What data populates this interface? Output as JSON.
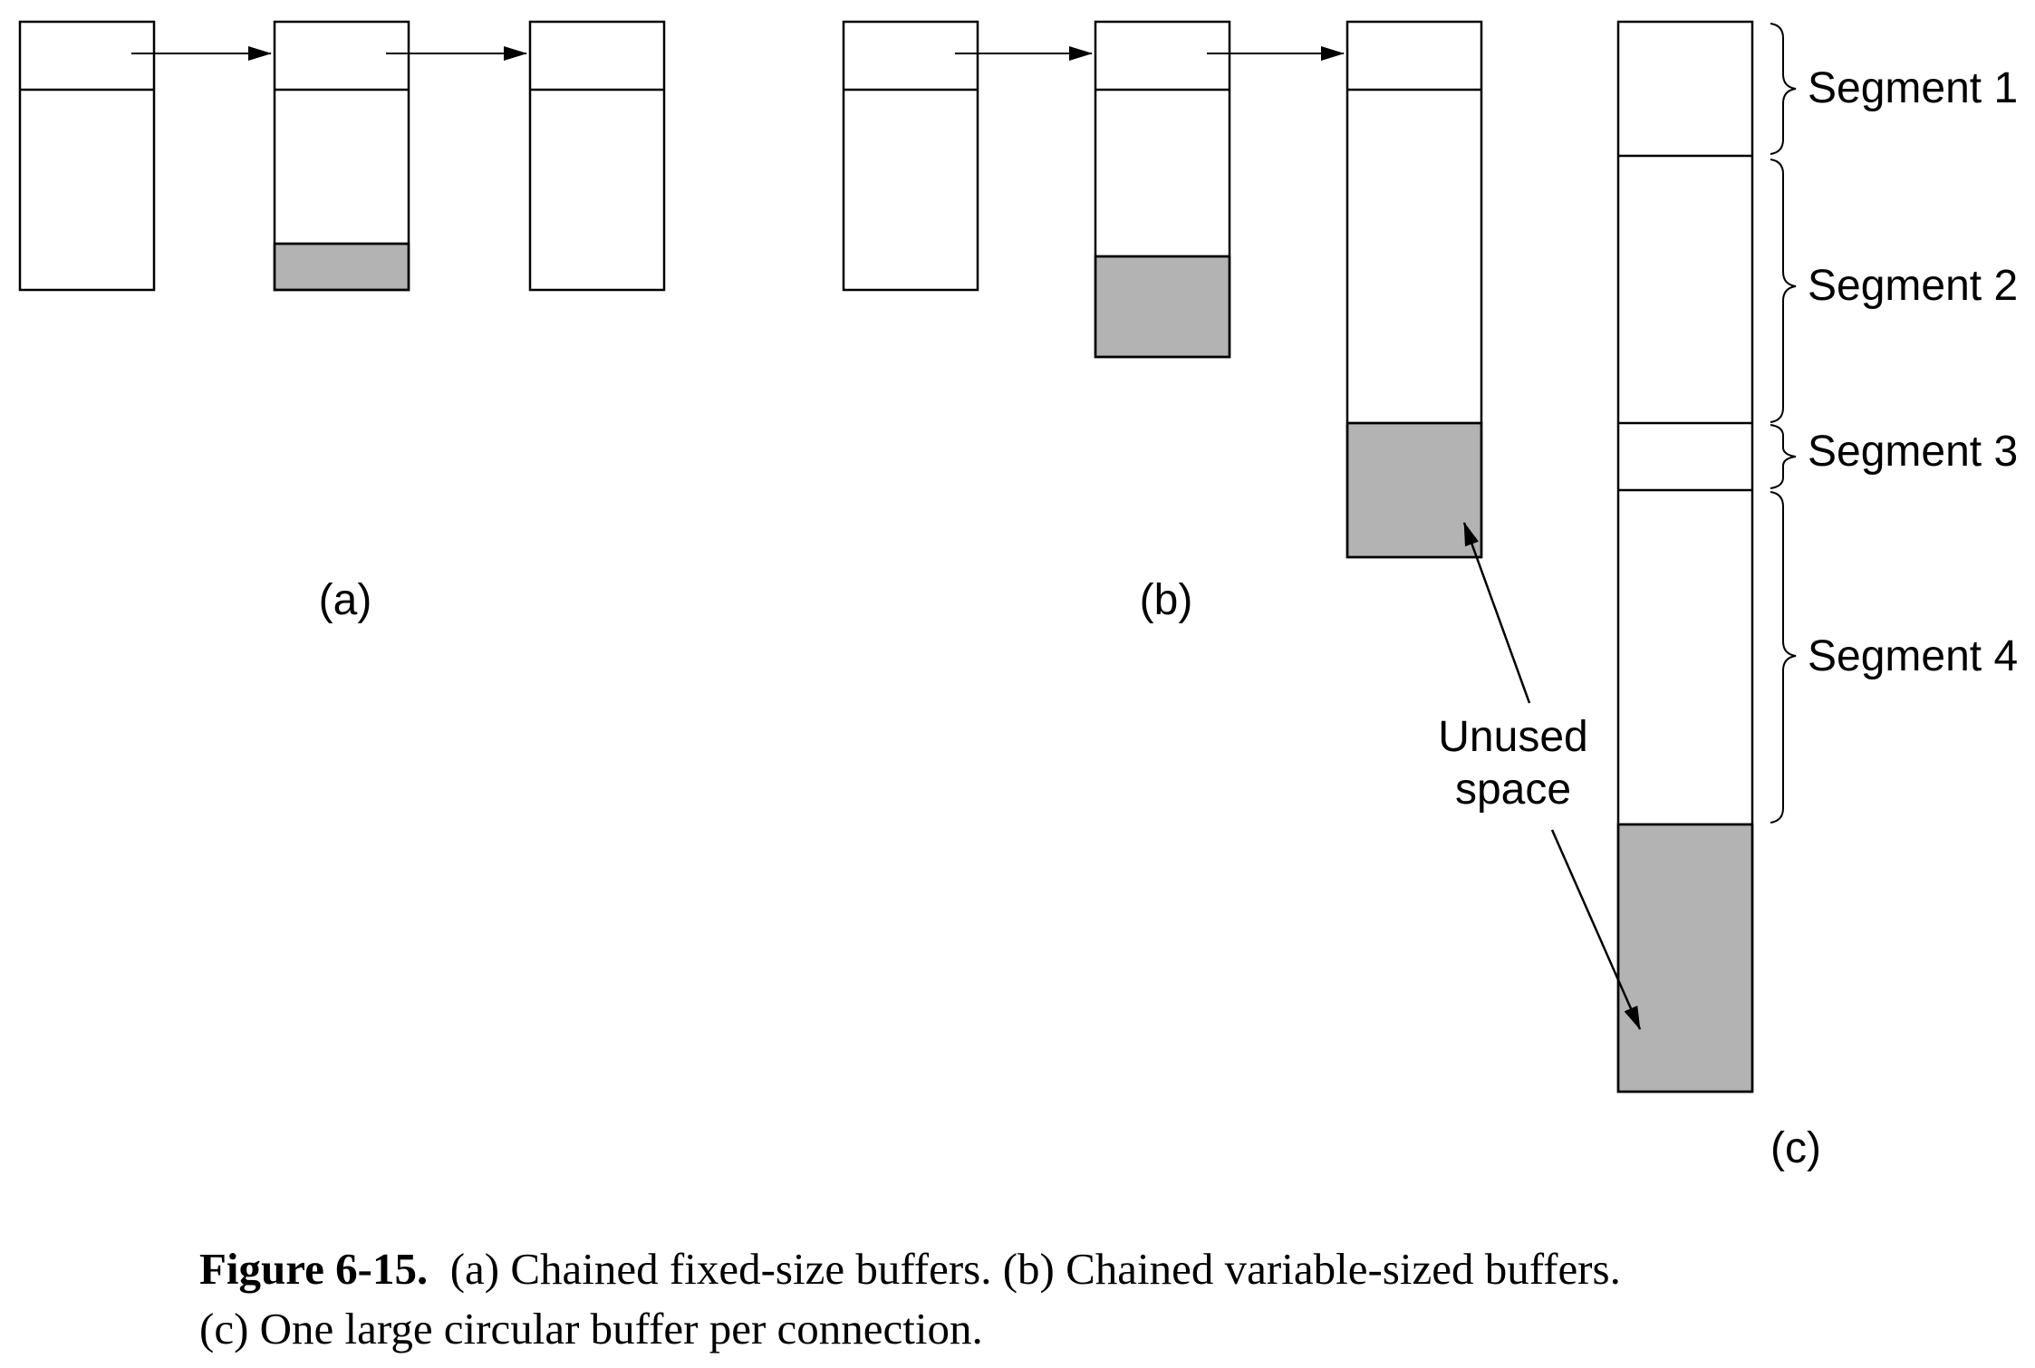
{
  "labels": {
    "a": "(a)",
    "b": "(b)",
    "c": "(c)",
    "unused_line1": "Unused",
    "unused_line2": "space",
    "segment1": "Segment 1",
    "segment2": "Segment 2",
    "segment3": "Segment 3",
    "segment4": "Segment 4"
  },
  "caption": {
    "figure": "Figure 6-15.",
    "line1": "(a) Chained fixed-size buffers.  (b) Chained variable-sized buffers.",
    "line2": "(c) One large circular buffer per connection."
  },
  "colors": {
    "stroke": "#000000",
    "unused_fill": "#b3b3b3",
    "background": "#ffffff"
  }
}
